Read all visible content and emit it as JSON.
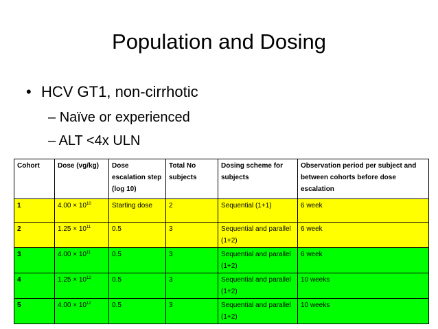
{
  "slide": {
    "title": "Population and Dosing",
    "bullet_glyph": "•",
    "dash_glyph": "–",
    "bullet": "HCV GT1, non-cirrhotic",
    "sub_bullets": [
      "Naïve or experienced",
      "ALT <4x ULN"
    ]
  },
  "table": {
    "headers": [
      "Cohort",
      "Dose (vg/kg)",
      "Dose escalation step (log 10)",
      "Total No subjects",
      "Dosing scheme for subjects",
      "Observation period per subject and between cohorts before dose escalation"
    ],
    "rows": [
      {
        "cohort": "1",
        "dose_base": "4.00 × 10",
        "dose_exp": "10",
        "step": "Starting dose",
        "subjects": "2",
        "scheme": "Sequential (1+1)",
        "observation": "6 week",
        "color": "#ffff00"
      },
      {
        "cohort": "2",
        "dose_base": "1.25 × 10",
        "dose_exp": "11",
        "step": "0.5",
        "subjects": "3",
        "scheme": "Sequential and parallel (1+2)",
        "observation": "6 week",
        "color": "#ffff00"
      },
      {
        "cohort": "3",
        "dose_base": "4.00 × 10",
        "dose_exp": "11",
        "step": "0.5",
        "subjects": "3",
        "scheme": "Sequential and parallel (1+2)",
        "observation": "6 week",
        "color": "#00ff00"
      },
      {
        "cohort": "4",
        "dose_base": "1.25 × 10",
        "dose_exp": "12",
        "step": "0.5",
        "subjects": "3",
        "scheme": "Sequential and parallel (1+2)",
        "observation": "10 weeks",
        "color": "#00ff00"
      },
      {
        "cohort": "5",
        "dose_base": "4.00 × 10",
        "dose_exp": "12",
        "step": "0.5",
        "subjects": "3",
        "scheme": "Sequential and parallel (1+2)",
        "observation": "10 weeks",
        "color": "#00ff00"
      }
    ]
  }
}
